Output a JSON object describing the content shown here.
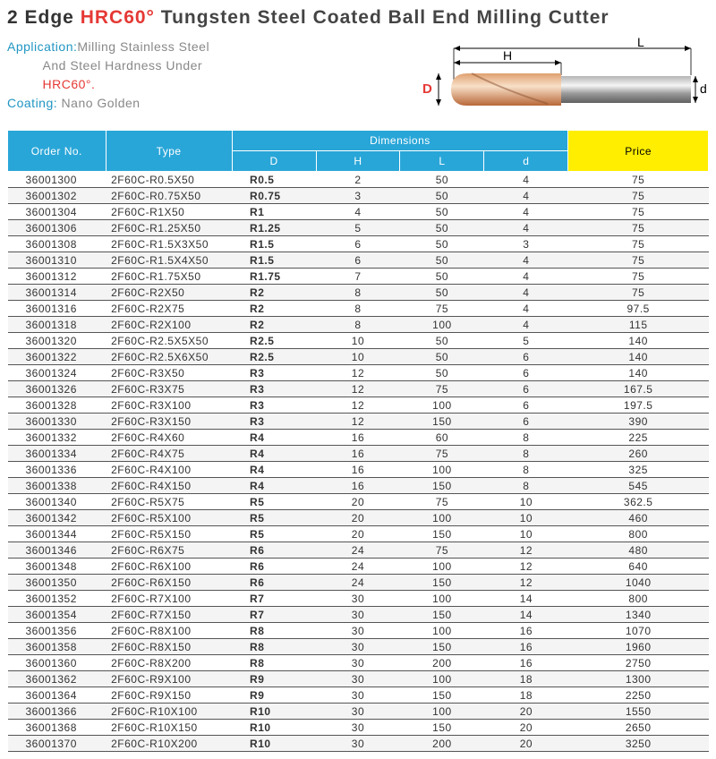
{
  "title": {
    "prefix": "2 Edge ",
    "highlight": "HRC60°",
    "suffix": " Tungsten Steel Coated Ball End Milling Cutter"
  },
  "application": {
    "label": "Application:",
    "line1": "Milling Stainless Steel",
    "line2": "And Steel Hardness Under",
    "line3": "HRC60°."
  },
  "coating": {
    "label": "Coating:",
    "value": " Nano Golden"
  },
  "diagram": {
    "labels": {
      "L": "L",
      "H": "H",
      "D": "D",
      "d": "d"
    },
    "colors": {
      "shank": "#8a8a8a",
      "shank_highlight": "#e8e8e8",
      "coating": "#d88b5a",
      "coating_highlight": "#f5d0b0",
      "arrow": "#000000"
    }
  },
  "headers": {
    "order": "Order No.",
    "type": "Type",
    "dimensions": "Dimensions",
    "D": "D",
    "H": "H",
    "L": "L",
    "d": "d",
    "price": "Price"
  },
  "rows": [
    {
      "order": "36001300",
      "type": "2F60C-R0.5X50",
      "D": "R0.5",
      "H": "2",
      "L": "50",
      "d": "4",
      "price": "75"
    },
    {
      "order": "36001302",
      "type": "2F60C-R0.75X50",
      "D": "R0.75",
      "H": "3",
      "L": "50",
      "d": "4",
      "price": "75"
    },
    {
      "order": "36001304",
      "type": "2F60C-R1X50",
      "D": "R1",
      "H": "4",
      "L": "50",
      "d": "4",
      "price": "75"
    },
    {
      "order": "36001306",
      "type": "2F60C-R1.25X50",
      "D": "R1.25",
      "H": "5",
      "L": "50",
      "d": "4",
      "price": "75"
    },
    {
      "order": "36001308",
      "type": "2F60C-R1.5X3X50",
      "D": "R1.5",
      "H": "6",
      "L": "50",
      "d": "3",
      "price": "75"
    },
    {
      "order": "36001310",
      "type": "2F60C-R1.5X4X50",
      "D": "R1.5",
      "H": "6",
      "L": "50",
      "d": "4",
      "price": "75"
    },
    {
      "order": "36001312",
      "type": "2F60C-R1.75X50",
      "D": "R1.75",
      "H": "7",
      "L": "50",
      "d": "4",
      "price": "75"
    },
    {
      "order": "36001314",
      "type": "2F60C-R2X50",
      "D": "R2",
      "H": "8",
      "L": "50",
      "d": "4",
      "price": "75"
    },
    {
      "order": "36001316",
      "type": "2F60C-R2X75",
      "D": "R2",
      "H": "8",
      "L": "75",
      "d": "4",
      "price": "97.5"
    },
    {
      "order": "36001318",
      "type": "2F60C-R2X100",
      "D": "R2",
      "H": "8",
      "L": "100",
      "d": "4",
      "price": "115"
    },
    {
      "order": "36001320",
      "type": "2F60C-R2.5X5X50",
      "D": "R2.5",
      "H": "10",
      "L": "50",
      "d": "5",
      "price": "140"
    },
    {
      "order": "36001322",
      "type": "2F60C-R2.5X6X50",
      "D": "R2.5",
      "H": "10",
      "L": "50",
      "d": "6",
      "price": "140"
    },
    {
      "order": "36001324",
      "type": "2F60C-R3X50",
      "D": "R3",
      "H": "12",
      "L": "50",
      "d": "6",
      "price": "140"
    },
    {
      "order": "36001326",
      "type": "2F60C-R3X75",
      "D": "R3",
      "H": "12",
      "L": "75",
      "d": "6",
      "price": "167.5"
    },
    {
      "order": "36001328",
      "type": "2F60C-R3X100",
      "D": "R3",
      "H": "12",
      "L": "100",
      "d": "6",
      "price": "197.5"
    },
    {
      "order": "36001330",
      "type": "2F60C-R3X150",
      "D": "R3",
      "H": "12",
      "L": "150",
      "d": "6",
      "price": "390"
    },
    {
      "order": "36001332",
      "type": "2F60C-R4X60",
      "D": "R4",
      "H": "16",
      "L": "60",
      "d": "8",
      "price": "225"
    },
    {
      "order": "36001334",
      "type": "2F60C-R4X75",
      "D": "R4",
      "H": "16",
      "L": "75",
      "d": "8",
      "price": "260"
    },
    {
      "order": "36001336",
      "type": "2F60C-R4X100",
      "D": "R4",
      "H": "16",
      "L": "100",
      "d": "8",
      "price": "325"
    },
    {
      "order": "36001338",
      "type": "2F60C-R4X150",
      "D": "R4",
      "H": "16",
      "L": "150",
      "d": "8",
      "price": "545"
    },
    {
      "order": "36001340",
      "type": "2F60C-R5X75",
      "D": "R5",
      "H": "20",
      "L": "75",
      "d": "10",
      "price": "362.5"
    },
    {
      "order": "36001342",
      "type": "2F60C-R5X100",
      "D": "R5",
      "H": "20",
      "L": "100",
      "d": "10",
      "price": "460"
    },
    {
      "order": "36001344",
      "type": "2F60C-R5X150",
      "D": "R5",
      "H": "20",
      "L": "150",
      "d": "10",
      "price": "800"
    },
    {
      "order": "36001346",
      "type": "2F60C-R6X75",
      "D": "R6",
      "H": "24",
      "L": "75",
      "d": "12",
      "price": "480"
    },
    {
      "order": "36001348",
      "type": "2F60C-R6X100",
      "D": "R6",
      "H": "24",
      "L": "100",
      "d": "12",
      "price": "640"
    },
    {
      "order": "36001350",
      "type": "2F60C-R6X150",
      "D": "R6",
      "H": "24",
      "L": "150",
      "d": "12",
      "price": "1040"
    },
    {
      "order": "36001352",
      "type": "2F60C-R7X100",
      "D": "R7",
      "H": "30",
      "L": "100",
      "d": "14",
      "price": "800"
    },
    {
      "order": "36001354",
      "type": "2F60C-R7X150",
      "D": "R7",
      "H": "30",
      "L": "150",
      "d": "14",
      "price": "1340"
    },
    {
      "order": "36001356",
      "type": "2F60C-R8X100",
      "D": "R8",
      "H": "30",
      "L": "100",
      "d": "16",
      "price": "1070"
    },
    {
      "order": "36001358",
      "type": "2F60C-R8X150",
      "D": "R8",
      "H": "30",
      "L": "150",
      "d": "16",
      "price": "1960"
    },
    {
      "order": "36001360",
      "type": "2F60C-R8X200",
      "D": "R8",
      "H": "30",
      "L": "200",
      "d": "16",
      "price": "2750"
    },
    {
      "order": "36001362",
      "type": "2F60C-R9X100",
      "D": "R9",
      "H": "30",
      "L": "100",
      "d": "18",
      "price": "1300"
    },
    {
      "order": "36001364",
      "type": "2F60C-R9X150",
      "D": "R9",
      "H": "30",
      "L": "150",
      "d": "18",
      "price": "2250"
    },
    {
      "order": "36001366",
      "type": "2F60C-R10X100",
      "D": "R10",
      "H": "30",
      "L": "100",
      "d": "20",
      "price": "1550"
    },
    {
      "order": "36001368",
      "type": "2F60C-R10X150",
      "D": "R10",
      "H": "30",
      "L": "150",
      "d": "20",
      "price": "2650"
    },
    {
      "order": "36001370",
      "type": "2F60C-R10X200",
      "D": "R10",
      "H": "30",
      "L": "200",
      "d": "20",
      "price": "3250"
    }
  ],
  "col_widths": {
    "order": "14%",
    "type": "18%",
    "D": "12%",
    "H": "12%",
    "L": "12%",
    "d": "12%",
    "price": "20%"
  }
}
